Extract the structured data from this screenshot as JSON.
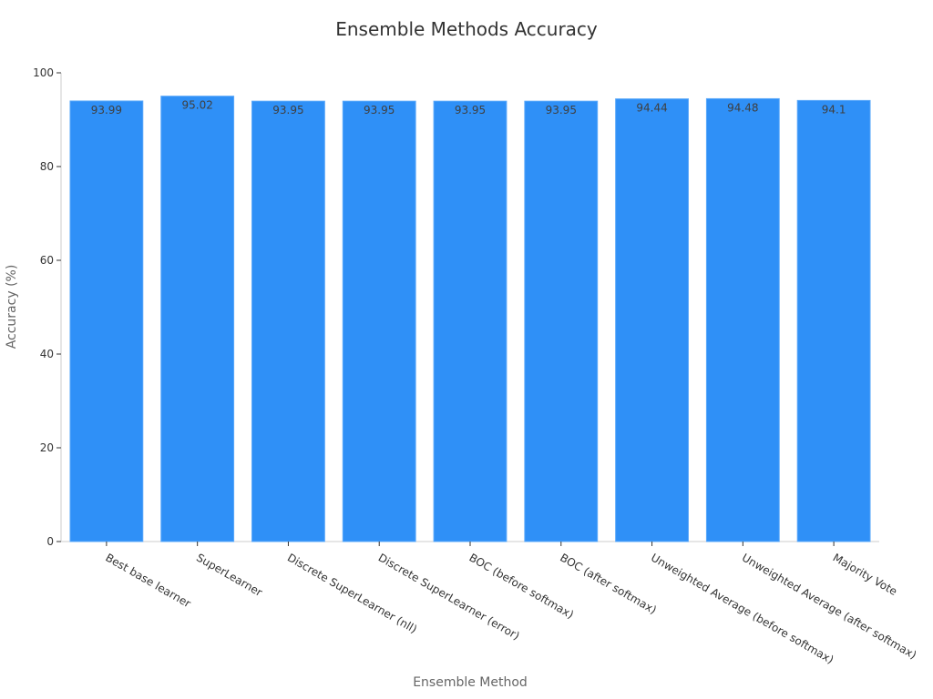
{
  "chart_data": {
    "type": "bar",
    "title": "Ensemble Methods Accuracy",
    "xlabel": "Ensemble Method",
    "ylabel": "Accuracy (%)",
    "categories": [
      "Best base learner",
      "SuperLearner",
      "Discrete SuperLearner (nll)",
      "Discrete SuperLearner (error)",
      "BOC (before softmax)",
      "BOC (after softmax)",
      "Unweighted Average (before softmax)",
      "Unweighted Average (after softmax)",
      "Majority Vote"
    ],
    "values": [
      93.99,
      95.02,
      93.95,
      93.95,
      93.95,
      93.95,
      94.44,
      94.48,
      94.1
    ],
    "data_labels": [
      "93.99",
      "95.02",
      "93.95",
      "93.95",
      "93.95",
      "93.95",
      "94.44",
      "94.48",
      "94.1"
    ],
    "ylim": [
      0,
      100
    ],
    "yticks": [
      0,
      20,
      40,
      60,
      80,
      100
    ],
    "grid": false,
    "legend": "none",
    "colors": {
      "bar": "#2f90f7",
      "bar_border": "#5aa8fa",
      "label": "#3f3f3f",
      "axis": "#cccccc",
      "tick_text": "#333333"
    }
  }
}
